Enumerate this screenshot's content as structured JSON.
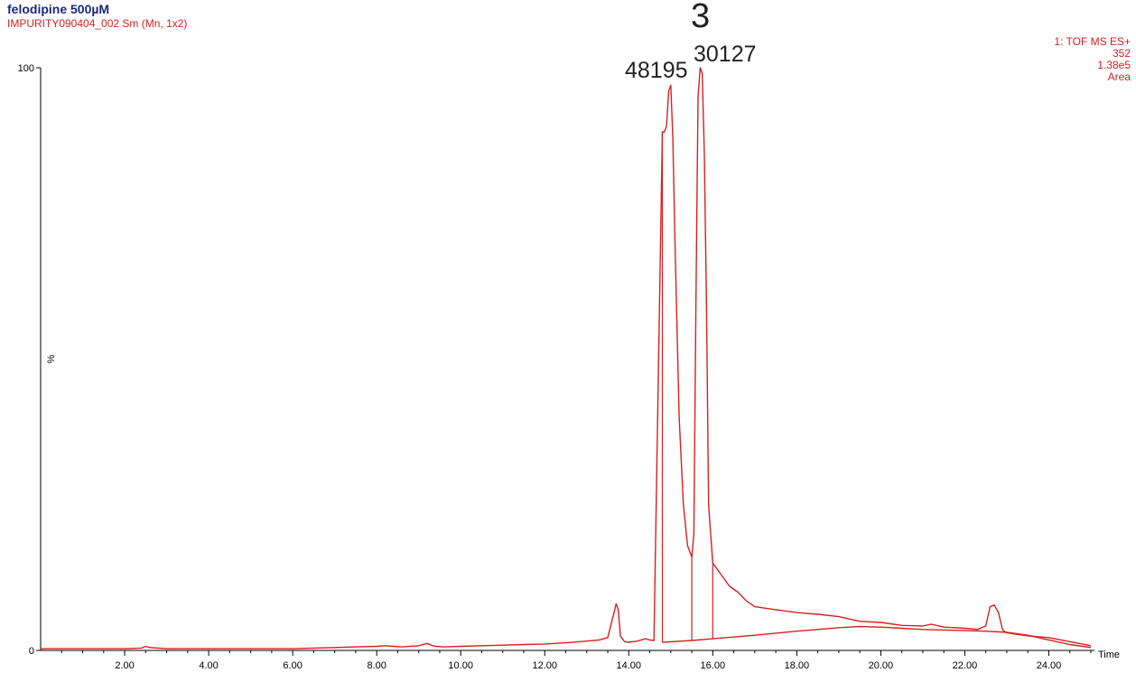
{
  "header": {
    "title": "felodipine 500µM",
    "subtitle": "IMPURITY090404_002 Sm (Mn, 1x2)"
  },
  "info": {
    "line1": "1: TOF MS ES+",
    "line2": "352",
    "line3": "1.38e5",
    "line4": "Area"
  },
  "annotations": {
    "compound_mark": "3",
    "peak1_area": "48195",
    "peak2_area": "30127"
  },
  "colors": {
    "trace": "#d62020",
    "title": "#1a2a7a",
    "axis": "#000000"
  },
  "chart_data": {
    "type": "line",
    "title": "felodipine 500µM",
    "xlabel": "Time",
    "ylabel": "%",
    "xlim": [
      0,
      25
    ],
    "ylim": [
      0,
      100
    ],
    "x_ticks": [
      "2.00",
      "4.00",
      "6.00",
      "8.00",
      "10.00",
      "12.00",
      "14.00",
      "16.00",
      "18.00",
      "20.00",
      "22.00",
      "24.00"
    ],
    "x_tick_values": [
      2,
      4,
      6,
      8,
      10,
      12,
      14,
      16,
      18,
      20,
      22,
      24
    ],
    "y_tick_labels": [
      "0",
      "100"
    ],
    "series": [
      {
        "x": [
          0,
          1,
          2,
          2.4,
          2.5,
          2.6,
          2.8,
          3,
          4,
          5,
          6,
          6.5,
          7,
          7.5,
          8,
          8.2,
          8.4,
          8.6,
          9,
          9.2,
          9.3,
          9.4,
          9.6,
          10,
          10.5,
          11,
          11.5,
          12,
          12.5,
          13,
          13.3,
          13.5,
          13.65,
          13.7,
          13.75,
          13.8,
          13.9,
          14,
          14.2,
          14.4,
          14.5,
          14.6,
          14.8,
          14.85,
          14.9,
          14.95,
          15,
          15.05,
          15.1,
          15.15,
          15.2,
          15.3,
          15.4,
          15.5,
          15.55,
          15.6,
          15.65,
          15.7,
          15.75,
          15.8,
          15.85,
          15.9,
          16,
          16.2,
          16.4,
          16.6,
          16.8,
          17,
          17.5,
          18,
          18.5,
          19,
          19.5,
          20,
          20.5,
          21,
          21.2,
          21.5,
          22,
          22.3,
          22.5,
          22.6,
          22.7,
          22.8,
          22.9,
          23,
          23.5,
          24,
          24.5,
          25
        ],
        "y": [
          0.3,
          0.3,
          0.3,
          0.4,
          0.7,
          0.5,
          0.4,
          0.3,
          0.3,
          0.3,
          0.3,
          0.4,
          0.5,
          0.6,
          0.7,
          0.8,
          0.7,
          0.6,
          0.8,
          1.2,
          0.9,
          0.7,
          0.6,
          0.7,
          0.8,
          0.9,
          1.0,
          1.1,
          1.3,
          1.6,
          1.8,
          2.2,
          6.5,
          8.0,
          7.0,
          2.5,
          1.5,
          1.4,
          1.6,
          2.0,
          1.8,
          1.7,
          89,
          89,
          90,
          96,
          97,
          88,
          70,
          55,
          40,
          25,
          18,
          16,
          20,
          60,
          95,
          100,
          99,
          85,
          60,
          25,
          15,
          13,
          11,
          10,
          8.5,
          7.5,
          7,
          6.5,
          6.2,
          5.8,
          5.0,
          4.8,
          4.3,
          4.2,
          4.5,
          4.0,
          3.8,
          3.6,
          4.2,
          7.5,
          7.8,
          6.5,
          3.5,
          3.0,
          2.5,
          2.2,
          1.5,
          0.8
        ]
      },
      {
        "x": [
          14.8,
          15.5,
          16,
          17,
          18,
          19,
          19.5,
          20,
          20.5,
          21,
          21.5,
          22,
          22.5,
          23,
          23.5,
          24,
          24.5,
          25
        ],
        "y": [
          1.4,
          1.7,
          2.0,
          2.6,
          3.3,
          3.9,
          4.1,
          4.0,
          3.8,
          3.6,
          3.5,
          3.4,
          3.3,
          3.1,
          2.6,
          1.8,
          1.0,
          0.5
        ]
      }
    ],
    "integration_drops": [
      14.8,
      15.5,
      16.0
    ],
    "grid": false,
    "legend": "none"
  }
}
